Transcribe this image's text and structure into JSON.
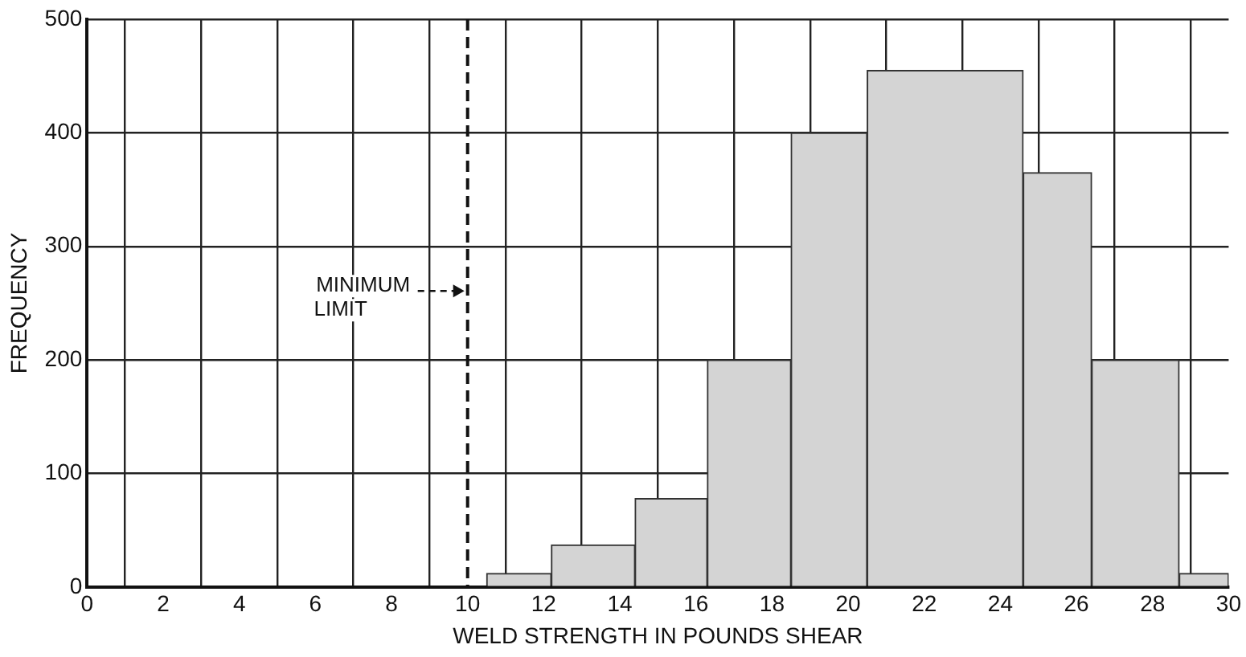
{
  "chart_data": {
    "type": "histogram",
    "xlabel": "WELD STRENGTH IN POUNDS SHEAR",
    "ylabel": "FREQUENCY",
    "bins": [
      10.5,
      12.2,
      14.4,
      16.3,
      18.5,
      20.5,
      24.6,
      26.4,
      28.7,
      30
    ],
    "values": [
      12,
      37,
      78,
      200,
      400,
      455,
      365,
      200,
      12
    ],
    "color": "#d4d4d4",
    "xlim": [
      0,
      30
    ],
    "xticks": [
      0,
      2,
      4,
      6,
      8,
      10,
      12,
      14,
      16,
      18,
      20,
      22,
      24,
      26,
      28,
      30
    ],
    "ylim": [
      0,
      500
    ],
    "yticks": [
      0,
      100,
      200,
      300,
      400,
      500
    ],
    "grid": true,
    "legend": false,
    "ref_lines": [
      {
        "axis": "x",
        "value": 10,
        "label": "MINIMUM LIMIT",
        "line_style": "dashed"
      }
    ]
  }
}
